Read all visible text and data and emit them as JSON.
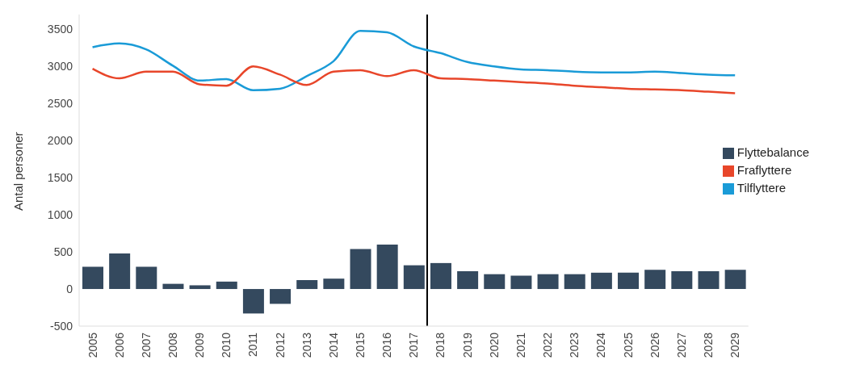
{
  "chart_data": {
    "type": "bar",
    "ylabel": "Antal personer",
    "x": [
      2005,
      2006,
      2007,
      2008,
      2009,
      2010,
      2011,
      2012,
      2013,
      2014,
      2015,
      2016,
      2017,
      2018,
      2019,
      2020,
      2021,
      2022,
      2023,
      2024,
      2025,
      2026,
      2027,
      2028,
      2029
    ],
    "xlim": [
      2004.5,
      2029.5
    ],
    "xticks": [
      2005,
      2006,
      2007,
      2008,
      2009,
      2010,
      2011,
      2012,
      2013,
      2014,
      2015,
      2016,
      2017,
      2018,
      2019,
      2020,
      2021,
      2022,
      2023,
      2024,
      2025,
      2026,
      2027,
      2028,
      2029
    ],
    "ylim": [
      -500,
      3700
    ],
    "yticks": [
      -500,
      0,
      500,
      1000,
      1500,
      2000,
      2500,
      3000,
      3500
    ],
    "series": [
      {
        "name": "Tilflyttere",
        "type": "line",
        "color": "#1a9bd7",
        "values": [
          3260,
          3310,
          3230,
          3010,
          2810,
          2830,
          2680,
          2700,
          2870,
          3070,
          3480,
          3460,
          3270,
          3180,
          3060,
          3000,
          2960,
          2950,
          2930,
          2920,
          2920,
          2930,
          2910,
          2890,
          2880
        ]
      },
      {
        "name": "Fraflyttere",
        "type": "line",
        "color": "#e8462a",
        "values": [
          2970,
          2840,
          2930,
          2930,
          2760,
          2740,
          3000,
          2890,
          2750,
          2930,
          2950,
          2870,
          2950,
          2840,
          2830,
          2810,
          2790,
          2770,
          2740,
          2720,
          2700,
          2690,
          2680,
          2660,
          2640
        ]
      },
      {
        "name": "Flyttebalance",
        "color": "#34495e",
        "values": [
          300,
          480,
          300,
          70,
          50,
          100,
          -330,
          -200,
          120,
          140,
          540,
          600,
          320,
          350,
          240,
          200,
          180,
          200,
          200,
          220,
          220,
          260,
          240,
          240,
          260
        ]
      }
    ],
    "ref_lines": [
      {
        "axis": "x",
        "value": 2017.5,
        "color": "#000000"
      }
    ],
    "grid": false,
    "legend": "right",
    "marker": "none"
  }
}
